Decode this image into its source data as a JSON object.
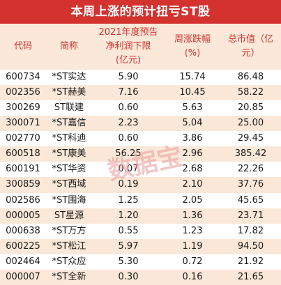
{
  "title": "本周上涨的预计扭亏ST股",
  "headers": {
    "code": "代码",
    "name": "简称",
    "profit": "2021年度预告\n净利润下限\n(亿元)",
    "change": "周涨跌幅\n(%)",
    "mcap": "总市值（亿\n元）"
  },
  "rows": [
    {
      "code": "600734",
      "name": "*ST实达",
      "profit": "5.90",
      "change": "15.74",
      "mcap": "86.48"
    },
    {
      "code": "002356",
      "name": "*ST赫美",
      "profit": "7.16",
      "change": "10.45",
      "mcap": "58.22"
    },
    {
      "code": "300269",
      "name": "ST联建",
      "profit": "0.60",
      "change": "5.63",
      "mcap": "20.85"
    },
    {
      "code": "300071",
      "name": "*ST嘉信",
      "profit": "2.23",
      "change": "5.04",
      "mcap": "25.00"
    },
    {
      "code": "002770",
      "name": "*ST科迪",
      "profit": "0.60",
      "change": "3.86",
      "mcap": "29.45"
    },
    {
      "code": "600518",
      "name": "*ST康美",
      "profit": "56.25",
      "change": "2.96",
      "mcap": "385.42"
    },
    {
      "code": "600191",
      "name": "*ST华资",
      "profit": "0.07",
      "change": "2.68",
      "mcap": "22.26"
    },
    {
      "code": "300859",
      "name": "*ST西域",
      "profit": "0.19",
      "change": "2.10",
      "mcap": "37.76"
    },
    {
      "code": "002586",
      "name": "*ST围海",
      "profit": "1.25",
      "change": "2.05",
      "mcap": "45.65"
    },
    {
      "code": "000005",
      "name": "ST星源",
      "profit": "1.20",
      "change": "1.36",
      "mcap": "23.71"
    },
    {
      "code": "000638",
      "name": "*ST万方",
      "profit": "0.55",
      "change": "1.23",
      "mcap": "17.82"
    },
    {
      "code": "600225",
      "name": "*ST松江",
      "profit": "5.97",
      "change": "1.19",
      "mcap": "94.50"
    },
    {
      "code": "002464",
      "name": "*ST众应",
      "profit": "5.30",
      "change": "0.72",
      "mcap": "21.92"
    },
    {
      "code": "000007",
      "name": "*ST全新",
      "profit": "0.30",
      "change": "0.16",
      "mcap": "21.65"
    }
  ],
  "watermark": "数据宝",
  "colors": {
    "title_bg": "#d3322f",
    "header_bg": "#fbe8d8",
    "header_text": "#d3322f",
    "watermark": "#e89a9a"
  }
}
